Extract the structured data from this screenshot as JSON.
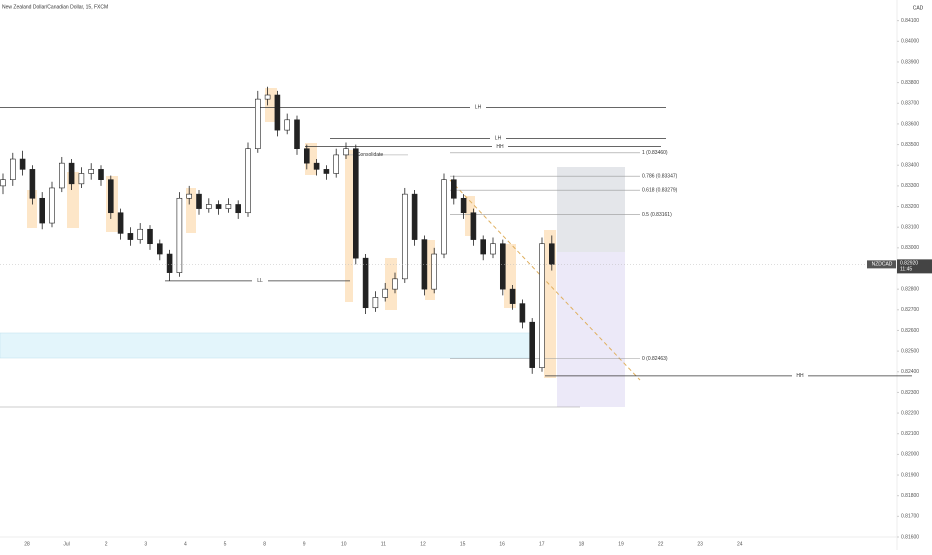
{
  "chart_data": {
    "type": "candlestick",
    "title": "New Zealand Dollar/Canadian Dollar, 15, FXCM",
    "currency": "CAD",
    "ylim": [
      0.816,
      0.842
    ],
    "yticks": [
      {
        "value": 0.816,
        "label": "0.81600"
      },
      {
        "value": 0.817,
        "label": "0.81700"
      },
      {
        "value": 0.818,
        "label": "0.81800"
      },
      {
        "value": 0.819,
        "label": "0.81900"
      },
      {
        "value": 0.82,
        "label": "0.82000"
      },
      {
        "value": 0.821,
        "label": "0.82100"
      },
      {
        "value": 0.822,
        "label": "0.82200"
      },
      {
        "value": 0.823,
        "label": "0.82300"
      },
      {
        "value": 0.824,
        "label": "0.82400"
      },
      {
        "value": 0.825,
        "label": "0.82500"
      },
      {
        "value": 0.826,
        "label": "0.82600"
      },
      {
        "value": 0.827,
        "label": "0.82700"
      },
      {
        "value": 0.828,
        "label": "0.82800"
      },
      {
        "value": 0.829,
        "label": "0.82900"
      },
      {
        "value": 0.83,
        "label": "0.83000"
      },
      {
        "value": 0.831,
        "label": "0.83100"
      },
      {
        "value": 0.832,
        "label": "0.83200"
      },
      {
        "value": 0.833,
        "label": "0.83300"
      },
      {
        "value": 0.834,
        "label": "0.83400"
      },
      {
        "value": 0.835,
        "label": "0.83500"
      },
      {
        "value": 0.836,
        "label": "0.83600"
      },
      {
        "value": 0.837,
        "label": "0.83700"
      },
      {
        "value": 0.838,
        "label": "0.83800"
      },
      {
        "value": 0.839,
        "label": "0.83900"
      },
      {
        "value": 0.84,
        "label": "0.84000"
      },
      {
        "value": 0.841,
        "label": "0.84100"
      }
    ],
    "x_labels": [
      "28",
      "Jul",
      "2",
      "3",
      "4",
      "5",
      "8",
      "9",
      "10",
      "11",
      "12",
      "15",
      "16",
      "17",
      "18",
      "19",
      "22",
      "23",
      "24"
    ],
    "candles": [
      [
        0.833,
        0.8336,
        0.8326,
        0.8333
      ],
      [
        0.8333,
        0.8346,
        0.833,
        0.8343
      ],
      [
        0.8343,
        0.8347,
        0.8335,
        0.8338
      ],
      [
        0.8338,
        0.834,
        0.8321,
        0.8324
      ],
      [
        0.8324,
        0.8327,
        0.8309,
        0.8312
      ],
      [
        0.8312,
        0.8332,
        0.831,
        0.8329
      ],
      [
        0.8329,
        0.8344,
        0.8327,
        0.8341
      ],
      [
        0.8341,
        0.8343,
        0.8328,
        0.8331
      ],
      [
        0.8331,
        0.8339,
        0.8329,
        0.8336
      ],
      [
        0.8336,
        0.8341,
        0.8333,
        0.8338
      ],
      [
        0.8338,
        0.834,
        0.833,
        0.8333
      ],
      [
        0.8333,
        0.8335,
        0.8314,
        0.8317
      ],
      [
        0.8317,
        0.8319,
        0.8304,
        0.8307
      ],
      [
        0.8307,
        0.831,
        0.8301,
        0.8304
      ],
      [
        0.8304,
        0.8312,
        0.8302,
        0.8309
      ],
      [
        0.8309,
        0.8311,
        0.8299,
        0.8302
      ],
      [
        0.8302,
        0.8304,
        0.8294,
        0.8297
      ],
      [
        0.8297,
        0.8299,
        0.8284,
        0.8288
      ],
      [
        0.8288,
        0.8327,
        0.8286,
        0.8324
      ],
      [
        0.8324,
        0.833,
        0.8321,
        0.8326
      ],
      [
        0.8326,
        0.8328,
        0.8316,
        0.8319
      ],
      [
        0.8319,
        0.8324,
        0.8317,
        0.8321
      ],
      [
        0.8321,
        0.8323,
        0.8316,
        0.8319
      ],
      [
        0.8319,
        0.8324,
        0.8317,
        0.8321
      ],
      [
        0.8321,
        0.8323,
        0.8314,
        0.8317
      ],
      [
        0.8317,
        0.8351,
        0.8315,
        0.8348
      ],
      [
        0.8348,
        0.8376,
        0.8346,
        0.8372
      ],
      [
        0.8372,
        0.8378,
        0.8369,
        0.8374
      ],
      [
        0.8374,
        0.8376,
        0.8354,
        0.8357
      ],
      [
        0.8357,
        0.8365,
        0.8355,
        0.8362
      ],
      [
        0.8362,
        0.8364,
        0.8345,
        0.8348
      ],
      [
        0.8348,
        0.835,
        0.8338,
        0.8341
      ],
      [
        0.8341,
        0.8343,
        0.8335,
        0.8338
      ],
      [
        0.8338,
        0.834,
        0.8333,
        0.8336
      ],
      [
        0.8336,
        0.8348,
        0.8334,
        0.8345
      ],
      [
        0.8345,
        0.8351,
        0.8343,
        0.8348
      ],
      [
        0.8348,
        0.835,
        0.8292,
        0.8295
      ],
      [
        0.8295,
        0.8297,
        0.8268,
        0.8271
      ],
      [
        0.8271,
        0.8279,
        0.8269,
        0.8276
      ],
      [
        0.8276,
        0.8283,
        0.8274,
        0.828
      ],
      [
        0.828,
        0.8288,
        0.8278,
        0.8285
      ],
      [
        0.8285,
        0.8329,
        0.8283,
        0.8326
      ],
      [
        0.8326,
        0.8328,
        0.8301,
        0.8304
      ],
      [
        0.8304,
        0.8306,
        0.8277,
        0.828
      ],
      [
        0.828,
        0.83,
        0.8278,
        0.8297
      ],
      [
        0.8297,
        0.8336,
        0.8295,
        0.8333
      ],
      [
        0.8333,
        0.8335,
        0.8321,
        0.8324
      ],
      [
        0.8324,
        0.8326,
        0.8314,
        0.8317
      ],
      [
        0.8317,
        0.8319,
        0.8301,
        0.8304
      ],
      [
        0.8304,
        0.8306,
        0.8294,
        0.8297
      ],
      [
        0.8297,
        0.8305,
        0.8295,
        0.8302
      ],
      [
        0.8302,
        0.8304,
        0.8277,
        0.828
      ],
      [
        0.828,
        0.8282,
        0.827,
        0.8273
      ],
      [
        0.8273,
        0.8275,
        0.8261,
        0.8264
      ],
      [
        0.8264,
        0.8266,
        0.8239,
        0.8242
      ],
      [
        0.8242,
        0.8305,
        0.824,
        0.8302
      ],
      [
        0.8302,
        0.8306,
        0.8289,
        0.8292
      ]
    ],
    "last_price": {
      "value": 0.8292,
      "label": "0.82920",
      "symbol": "NZDCAD",
      "countdown": "11:45"
    },
    "levels": [
      {
        "value": 0.8368,
        "label": "LH"
      },
      {
        "value": 0.8353,
        "label": "LH"
      },
      {
        "value": 0.8349,
        "label": "HH"
      },
      {
        "value": 0.8284,
        "label": "LL"
      },
      {
        "value": 0.8345,
        "label": "Consolidate"
      },
      {
        "value": 0.8238,
        "label": "HH"
      }
    ],
    "fib": [
      {
        "value": 0.8346,
        "label": "1 (0.83460)"
      },
      {
        "value": 0.83347,
        "label": "0.786 (0.83347)"
      },
      {
        "value": 0.83279,
        "label": "0.618 (0.83279)"
      },
      {
        "value": 0.83161,
        "label": "0.5 (0.83161)"
      },
      {
        "value": 0.82463,
        "label": "0 (0.82463)"
      }
    ]
  }
}
